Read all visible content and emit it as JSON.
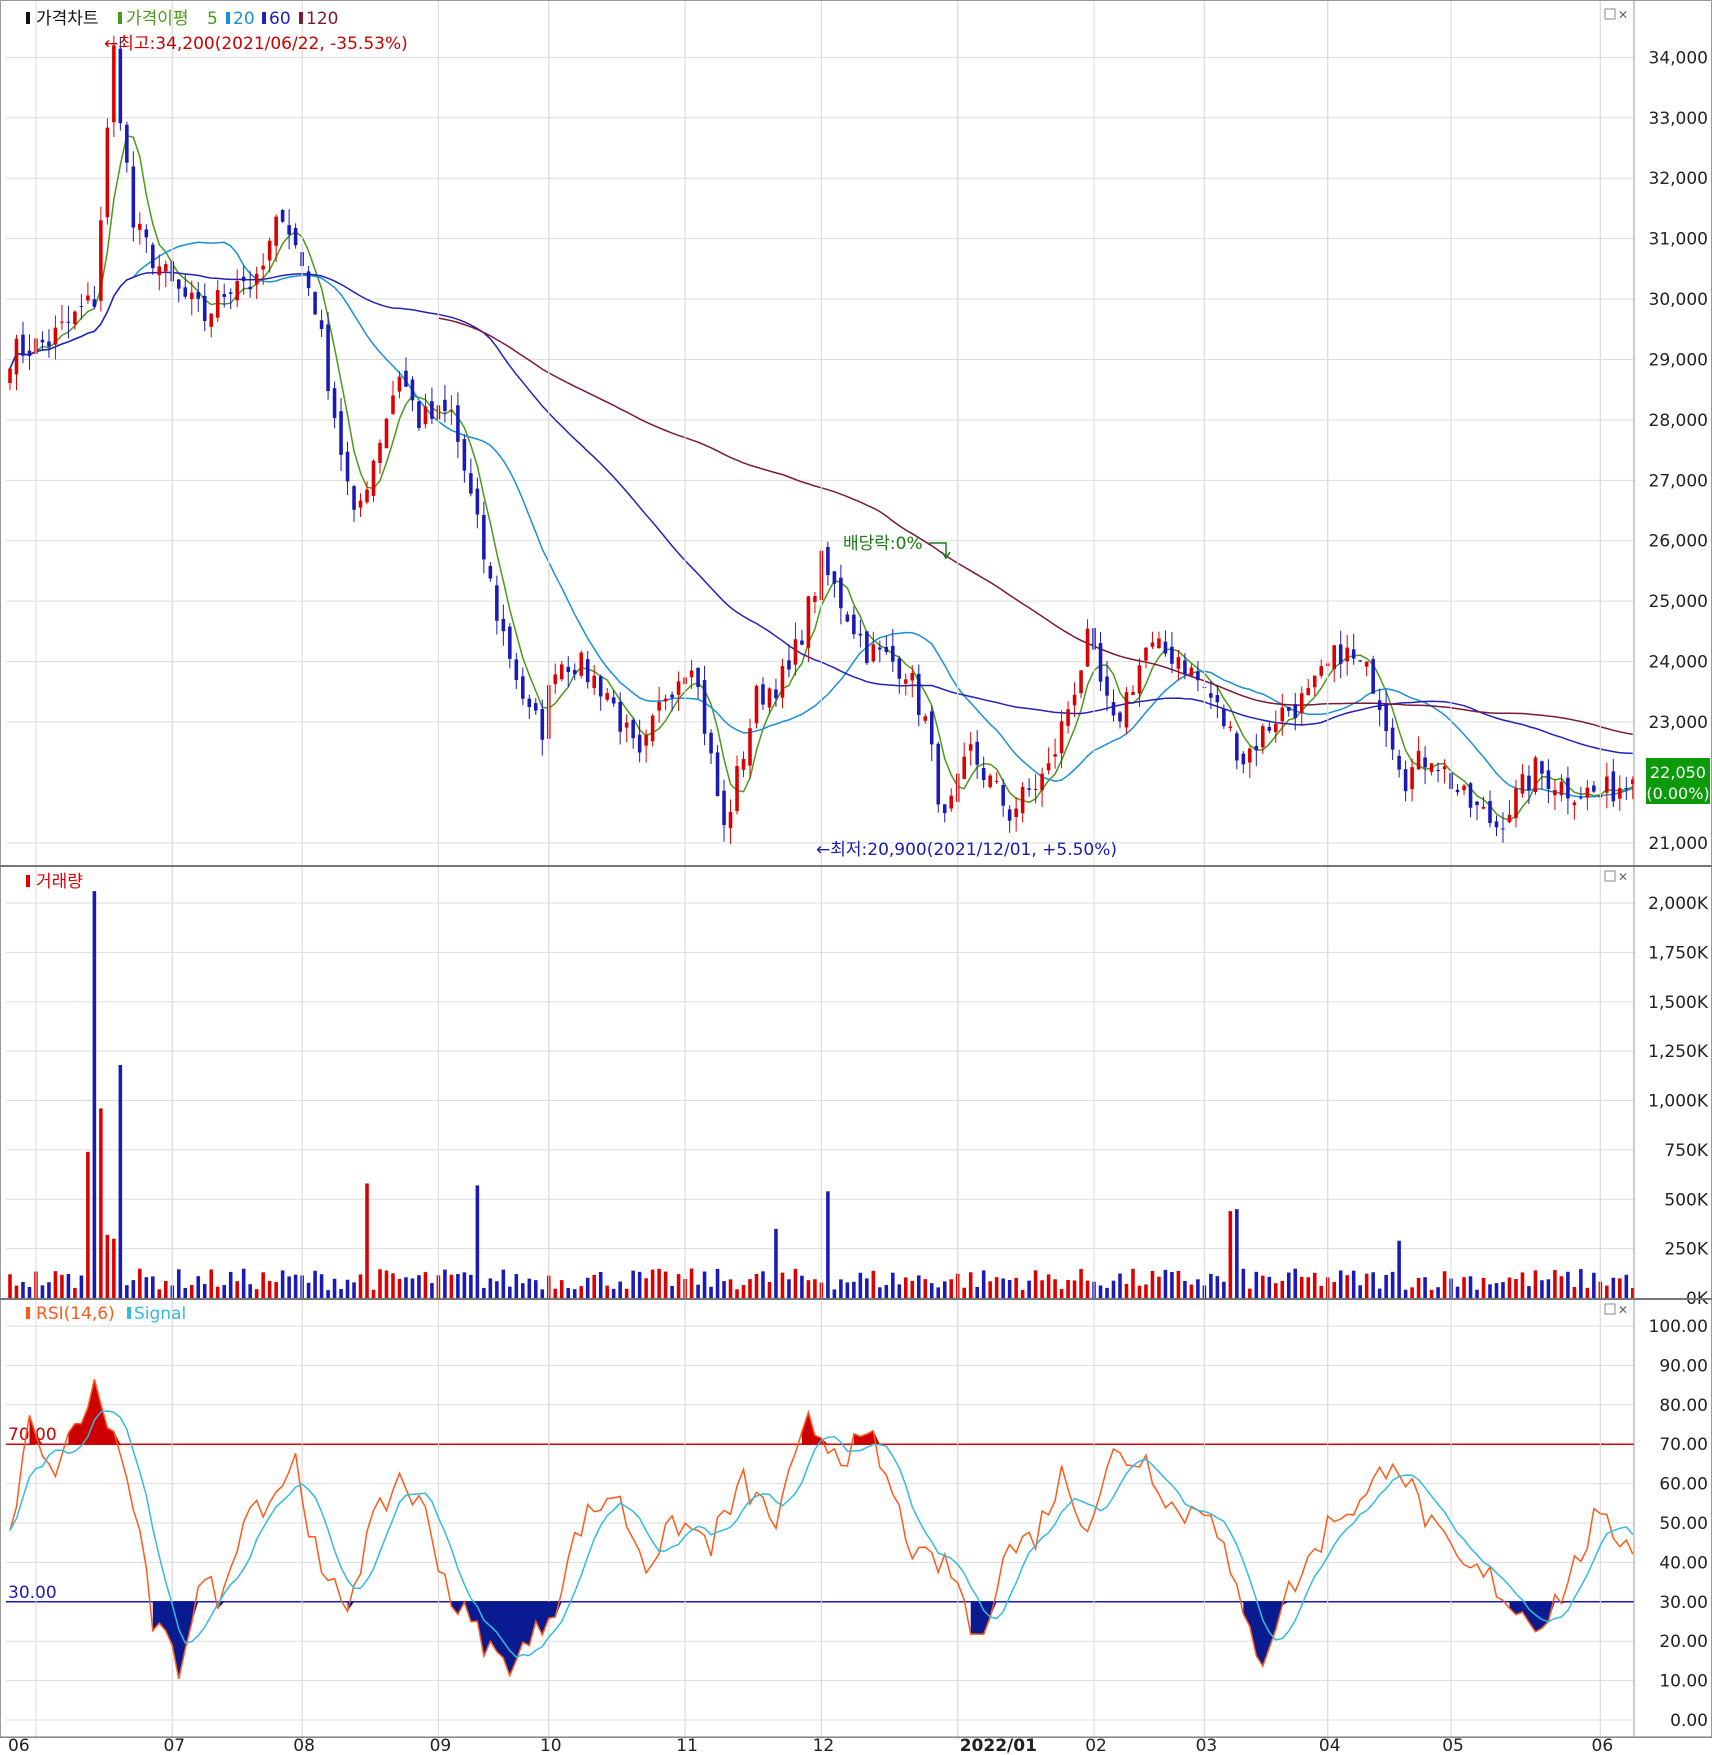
{
  "colors": {
    "up": "#dd0000",
    "down": "#1a1ab8",
    "ma5": "#4a9a1a",
    "ma20": "#1a8fd8",
    "ma60": "#2222bb",
    "ma120": "#7a1a3a",
    "rsi": "#ff5a1a",
    "signal": "#33bbdd",
    "grid": "#dddddd",
    "border": "#999999",
    "current_bg": "#0a9a0a",
    "dividend": "#1a7a1a"
  },
  "legend": {
    "price_title": "가격차트",
    "ma_label": "가격이평",
    "ma_periods": [
      "5",
      "20",
      "60",
      "120"
    ],
    "volume_title": "거래량",
    "rsi_title": "RSI(14,6)",
    "signal_title": "Signal"
  },
  "annotations": {
    "high": "←최고:34,200(2021/06/22, -35.53%)",
    "low": "←최저:20,900(2021/12/01, +5.50%)",
    "dividend": "배당락:0%",
    "current_price": "22,050",
    "current_change": "(0.00%)"
  },
  "chart_data": [
    {
      "type": "line",
      "subtype": "candlestick",
      "title": "가격차트",
      "x_ticks": [
        "06",
        "07",
        "08",
        "09",
        "10",
        "11",
        "12",
        "2022/01",
        "02",
        "03",
        "04",
        "05",
        "06"
      ],
      "y_ticks": [
        "34,000",
        "33,000",
        "32,000",
        "31,000",
        "30,000",
        "29,000",
        "28,000",
        "27,000",
        "26,000",
        "25,000",
        "24,000",
        "23,000",
        "21,000"
      ],
      "ylim": [
        20650,
        34850
      ],
      "grid": true,
      "legend_position": "top-left",
      "anchors": {
        "x": [
          0,
          6,
          13,
          16,
          19,
          25,
          30,
          35,
          38,
          42,
          47,
          53,
          60,
          63,
          68,
          75,
          80,
          82,
          84,
          87,
          92,
          97,
          101,
          105,
          110,
          115,
          120,
          125,
          132,
          138,
          141,
          144,
          148,
          154,
          160,
          166,
          170,
          175,
          180,
          185,
          190,
          195,
          200,
          205,
          210,
          215,
          219,
          224,
          229,
          235,
          240,
          245,
          250
        ],
        "close": [
          29100,
          29300,
          30000,
          34100,
          31200,
          30200,
          29700,
          30400,
          30200,
          31500,
          29900,
          26300,
          28800,
          28000,
          28100,
          24800,
          23100,
          22900,
          24000,
          24000,
          23500,
          22300,
          23500,
          24100,
          21200,
          23400,
          23800,
          25600,
          24200,
          23900,
          23000,
          21300,
          22500,
          21500,
          22200,
          24300,
          22900,
          24200,
          24100,
          23400,
          22400,
          23100,
          23400,
          24200,
          23700,
          22100,
          22500,
          21700,
          21300,
          22200,
          21900,
          21800,
          22050
        ]
      },
      "series": [
        {
          "name": "5",
          "kind": "moving-average"
        },
        {
          "name": "20",
          "kind": "moving-average"
        },
        {
          "name": "60",
          "kind": "moving-average"
        },
        {
          "name": "120",
          "kind": "moving-average"
        }
      ],
      "current_value": 22050
    },
    {
      "type": "bar",
      "title": "거래량",
      "y_ticks": [
        "2,000K",
        "1,750K",
        "1,500K",
        "1,250K",
        "1,000K",
        "750K",
        "500K",
        "250K",
        "0K"
      ],
      "ylim": [
        0,
        2000
      ],
      "units": "K",
      "spikes": {
        "index": [
          12,
          13,
          14,
          15,
          16,
          17,
          55,
          72,
          118,
          126,
          188,
          189,
          214
        ],
        "value": [
          740,
          2060,
          960,
          320,
          300,
          1180,
          580,
          570,
          350,
          540,
          440,
          450,
          290
        ]
      },
      "grid": true
    },
    {
      "type": "line",
      "title": "RSI(14,6)",
      "y_ticks": [
        "100.00",
        "90.00",
        "80.00",
        "70.00",
        "60.00",
        "50.00",
        "40.00",
        "30.00",
        "20.00",
        "10.00",
        "0.00"
      ],
      "ylim": [
        0,
        100
      ],
      "reference_lines": [
        70,
        30
      ],
      "reference_labels": [
        "70.00",
        "30.00"
      ],
      "anchors": {
        "x": [
          0,
          3,
          6,
          9,
          13,
          16,
          19,
          22,
          26,
          29,
          33,
          36,
          40,
          44,
          48,
          52,
          55,
          60,
          64,
          68,
          72,
          76,
          80,
          84,
          88,
          93,
          98,
          103,
          108,
          113,
          118,
          123,
          128,
          133,
          137,
          140,
          143,
          146,
          149,
          153,
          158,
          162,
          166,
          170,
          175,
          180,
          185,
          190,
          193,
          196,
          200,
          204,
          209,
          213,
          216,
          220,
          224,
          228,
          232,
          236,
          240,
          244,
          250
        ],
        "rsi": [
          45,
          75,
          62,
          70,
          84,
          72,
          55,
          25,
          13,
          35,
          31,
          54,
          56,
          66,
          35,
          30,
          46,
          62,
          52,
          31,
          22,
          14,
          19,
          30,
          50,
          58,
          40,
          50,
          45,
          60,
          50,
          75,
          68,
          70,
          52,
          40,
          40,
          35,
          18,
          42,
          47,
          62,
          50,
          67,
          66,
          52,
          55,
          25,
          16,
          30,
          40,
          52,
          56,
          68,
          58,
          46,
          38,
          36,
          28,
          25,
          35,
          50,
          45
        ]
      },
      "series": [
        {
          "name": "RSI(14,6)"
        },
        {
          "name": "Signal"
        }
      ],
      "grid": true
    }
  ]
}
